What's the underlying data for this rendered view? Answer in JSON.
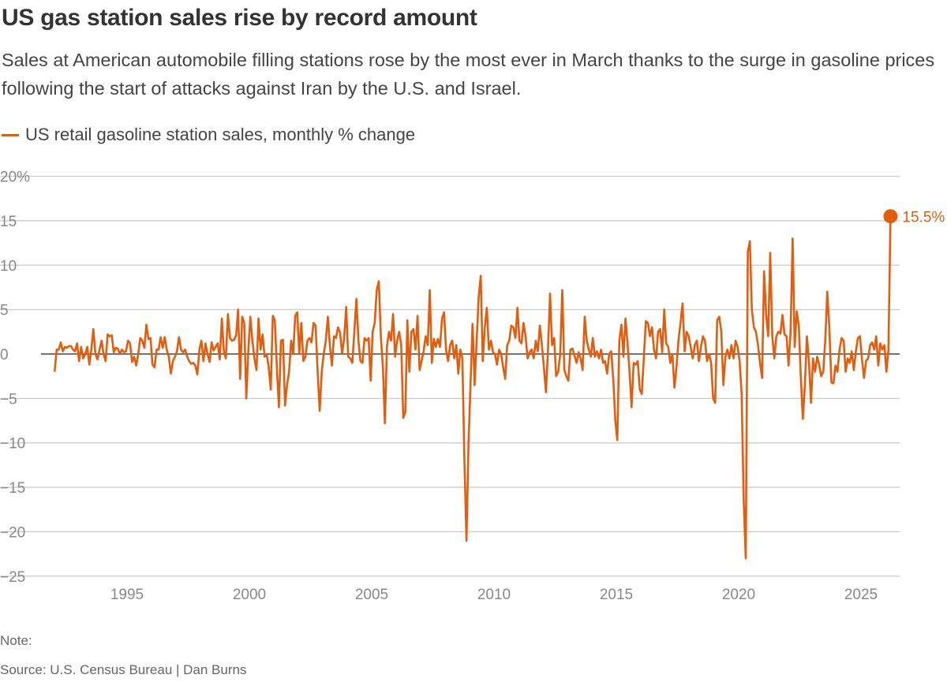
{
  "header": {
    "title": "US gas station sales rise by record amount",
    "subtitle": "Sales at American automobile filling stations rose by the most ever in March thanks to the surge in gasoline prices following the start of attacks against Iran by the U.S. and Israel."
  },
  "footer": {
    "note": "Note:",
    "source": "Source: U.S. Census Bureau | Dan Burns"
  },
  "chart_data": {
    "type": "line",
    "title": "US gas station sales rise by record amount",
    "xlabel": "",
    "ylabel": "",
    "ylim": [
      -25,
      20
    ],
    "y_ticks": [
      "20%",
      "15",
      "10",
      "5",
      "0",
      "−10",
      "−15",
      "−20",
      "−25"
    ],
    "y_tick_values": [
      20,
      15,
      10,
      5,
      0,
      -10,
      -15,
      -20,
      -25
    ],
    "y_tick_labels_all": [
      {
        "v": 20,
        "t": "20%"
      },
      {
        "v": 15,
        "t": "15"
      },
      {
        "v": 10,
        "t": "10"
      },
      {
        "v": 5,
        "t": "5"
      },
      {
        "v": 0,
        "t": "0"
      },
      {
        "v": -5,
        "t": "−5"
      },
      {
        "v": -10,
        "t": "−10"
      },
      {
        "v": -15,
        "t": "−15"
      },
      {
        "v": -20,
        "t": "−20"
      },
      {
        "v": -25,
        "t": "−25"
      }
    ],
    "x_ticks": [
      "1995",
      "2000",
      "2005",
      "2010",
      "2015",
      "2020",
      "2025"
    ],
    "grid": true,
    "legend_position": "top-left",
    "color": "#e35d0e",
    "series": [
      {
        "name": "US retail gasoline station sales, monthly % change",
        "start": "1992-01",
        "frequency": "monthly",
        "values": [
          -2,
          0.5,
          0.5,
          1.3,
          0.3,
          0.8,
          0.7,
          0.9,
          0.9,
          0.5,
          0.3,
          1.2,
          -0.8,
          0.8,
          -0.5,
          0,
          0.8,
          -1.2,
          0.5,
          2.8,
          0,
          -0.6,
          0.5,
          1.5,
          0,
          -0.8,
          2.2,
          2.0,
          2.1,
          0.2,
          0.7,
          0.6,
          0,
          0.5,
          0.2,
          0.3,
          1.5,
          1.2,
          -0.9,
          -0.3,
          -1.3,
          0,
          1.8,
          1.5,
          0.7,
          3.3,
          1.7,
          1.8,
          -1.2,
          -1.5,
          0.5,
          0.5,
          1.9,
          0.7,
          1.9,
          0.5,
          -0.3,
          -2.2,
          -0.8,
          -0.3,
          0.3,
          1.9,
          0.5,
          0.2,
          0.5,
          -0.3,
          -0.8,
          -1.1,
          -1.0,
          -1.3,
          -2.3,
          0.5,
          1.5,
          -0.8,
          1.2,
          0,
          -0.9,
          1.3,
          0.4,
          0.8,
          1.2,
          -0.6,
          4.0,
          0.3,
          -0.5,
          4.5,
          1.8,
          1.5,
          1.6,
          2.1,
          5.0,
          -2.8,
          4.2,
          3.5,
          -5.0,
          0.5,
          4.2,
          1.5,
          -0.5,
          -1.8,
          4.0,
          0.5,
          2.2,
          -0.3,
          0,
          -1.5,
          -4.0,
          4.3,
          3.8,
          -1.5,
          -6.0,
          1.5,
          1.6,
          -5.8,
          -3.5,
          -2.0,
          1.5,
          0,
          4.3,
          4.7,
          0,
          3.5,
          -0.8,
          -0.3,
          1.5,
          1.8,
          1.3,
          3.5,
          3.2,
          -2.0,
          -6.4,
          -2.0,
          0,
          1.5,
          4.2,
          1.0,
          -1.3,
          2.0,
          1.8,
          3.0,
          2.4,
          0,
          1.8,
          5.3,
          -0.3,
          -0.5,
          -1.0,
          2.5,
          6.2,
          1.5,
          -0.8,
          -1.0,
          1.8,
          1.5,
          1.8,
          -3.0,
          2.5,
          3.5,
          7.2,
          8.2,
          2.0,
          -1.5,
          -7.8,
          0.8,
          2.5,
          1.5,
          4.5,
          -0.3,
          1.5,
          2.5,
          1.0,
          -7.2,
          -6.5,
          3.8,
          -2.0,
          2.5,
          2.8,
          0.5,
          4.3,
          -1.8,
          -0.8,
          0.3,
          2.0,
          1.0,
          7.2,
          -1.0,
          1.7,
          0.8,
          1.7,
          0.8,
          4.0,
          4.7,
          0.5,
          -0.8,
          1.0,
          1.5,
          -0.5,
          1.0,
          -2.2,
          0.5,
          -0.5,
          -12.0,
          -21.0,
          -10.0,
          -3.5,
          3.4,
          -3.5,
          1.5,
          6.5,
          8.8,
          -0.8,
          3.0,
          5.2,
          0.5,
          1.5,
          0.2,
          0,
          -1.2,
          0.5,
          0,
          -1.5,
          -2.8,
          1.0,
          1.5,
          3.2,
          3.0,
          1.8,
          5.2,
          1.5,
          1.2,
          3.5,
          2.0,
          -0.5,
          0.2,
          0.5,
          -0.5,
          1.5,
          0.3,
          3.2,
          1.0,
          -1.5,
          -4.3,
          0.5,
          6.8,
          1.0,
          1.8,
          -2.5,
          -2.0,
          0,
          7.2,
          -1.8,
          -2.5,
          -3.0,
          0.5,
          0.6,
          -0.2,
          -1.0,
          0.2,
          -0.5,
          -1.8,
          4.2,
          1.5,
          0.5,
          -0.3,
          1.8,
          -0.3,
          0.3,
          -0.5,
          0.5,
          -1.0,
          -0.8,
          -2.2,
          0,
          0.3,
          -2.8,
          -7.5,
          -9.7,
          1.5,
          3.3,
          -0.3,
          4.0,
          1.2,
          -2.0,
          -6.0,
          -1.0,
          -1.2,
          -0.8,
          -4.0,
          -4.5,
          -0.5,
          3.7,
          3.5,
          2.0,
          3.0,
          0.5,
          -0.5,
          2.5,
          2.8,
          0.2,
          5.0,
          1.2,
          0.8,
          -1.0,
          0.0,
          -3.8,
          -1.5,
          1.5,
          3.5,
          5.7,
          0.3,
          2.5,
          2.0,
          0.8,
          -0.5,
          1.0,
          1.5,
          -0.8,
          0.8,
          2.0,
          1.5,
          -0.8,
          0,
          -1.0,
          -5.0,
          -5.5,
          3.8,
          4.2,
          2.5,
          -3.5,
          -0.3,
          0.5,
          -0.5,
          1.0,
          -0.5,
          1.5,
          0.8,
          -0.8,
          -4.5,
          -16.5,
          -23.0,
          11.5,
          12.7,
          5.0,
          3.0,
          2.5,
          1.0,
          -1.0,
          -2.7,
          9.3,
          4.5,
          2.0,
          11.4,
          2.0,
          -0.5,
          2.0,
          2.5,
          2.3,
          4.4,
          2.2,
          2.0,
          -1.3,
          2.5,
          13.0,
          0.8,
          4.8,
          3.2,
          -2.5,
          -7.3,
          -3.5,
          2.0,
          -1.0,
          -5.5,
          -0.5,
          -2.0,
          -0.3,
          -1.2,
          -2.5,
          -2.0,
          1.5,
          7.0,
          3.0,
          -3.2,
          -3.3,
          -1.3,
          -2.0,
          0.5,
          1.8,
          1.5,
          -2.0,
          -0.5,
          -1.0,
          0.3,
          -1.8,
          0.3,
          1.8,
          2.0,
          -0.5,
          -2.7,
          -0.8,
          -0.5,
          1.0,
          1.3,
          0.5,
          2.0,
          -1.3,
          1.2,
          0.5,
          1.0,
          -2.0,
          0.5,
          15.5
        ]
      }
    ],
    "annotation": {
      "label": "15.5%",
      "value": 15.5,
      "date": "2026-03"
    }
  }
}
